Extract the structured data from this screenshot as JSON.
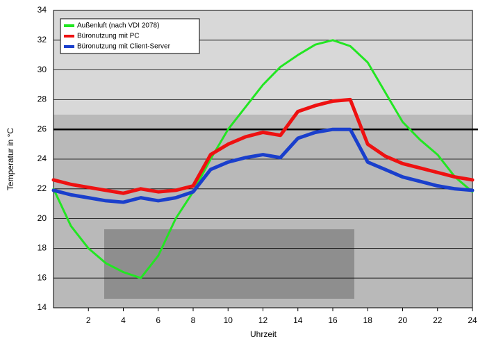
{
  "chart_data": {
    "type": "line",
    "x_label": "Uhrzeit",
    "y_label": "Temperatur in °C",
    "x": [
      0,
      1,
      2,
      3,
      4,
      5,
      6,
      7,
      8,
      9,
      10,
      11,
      12,
      13,
      14,
      15,
      16,
      17,
      18,
      19,
      20,
      21,
      22,
      23,
      24
    ],
    "series": [
      {
        "name": "Außenluft (nach VDI 2078)",
        "color": "#22e622",
        "values": [
          22,
          19.5,
          18,
          17,
          16.4,
          16,
          17.5,
          20,
          21.8,
          24,
          26,
          27.5,
          29,
          30.2,
          31,
          31.7,
          32,
          31.6,
          30.5,
          28.5,
          26.5,
          25.3,
          24.3,
          22.8,
          21.8
        ]
      },
      {
        "name": "Büronutzung mit PC",
        "color": "#ee1111",
        "values": [
          22.6,
          22.3,
          22.1,
          21.9,
          21.7,
          22,
          21.8,
          21.9,
          22.2,
          24.3,
          25,
          25.5,
          25.8,
          25.6,
          27.2,
          27.6,
          27.9,
          28,
          25,
          24.2,
          23.7,
          23.4,
          23.1,
          22.8,
          22.6
        ]
      },
      {
        "name": "Büronutzung mit Client-Server",
        "color": "#1a3fcc",
        "values": [
          21.9,
          21.6,
          21.4,
          21.2,
          21.1,
          21.4,
          21.2,
          21.4,
          21.8,
          23.3,
          23.8,
          24.1,
          24.3,
          24.1,
          25.4,
          25.8,
          26,
          26,
          23.8,
          23.3,
          22.8,
          22.5,
          22.2,
          22,
          21.9
        ]
      }
    ],
    "xlim": [
      0,
      24
    ],
    "xticks": [
      2,
      4,
      6,
      8,
      10,
      12,
      14,
      16,
      18,
      20,
      22,
      24
    ],
    "ylim": [
      14,
      34
    ],
    "yticks": [
      14,
      16,
      18,
      20,
      22,
      24,
      26,
      28,
      30,
      32,
      34
    ],
    "grid": true,
    "reference_line": 26,
    "legend": "upper left"
  }
}
